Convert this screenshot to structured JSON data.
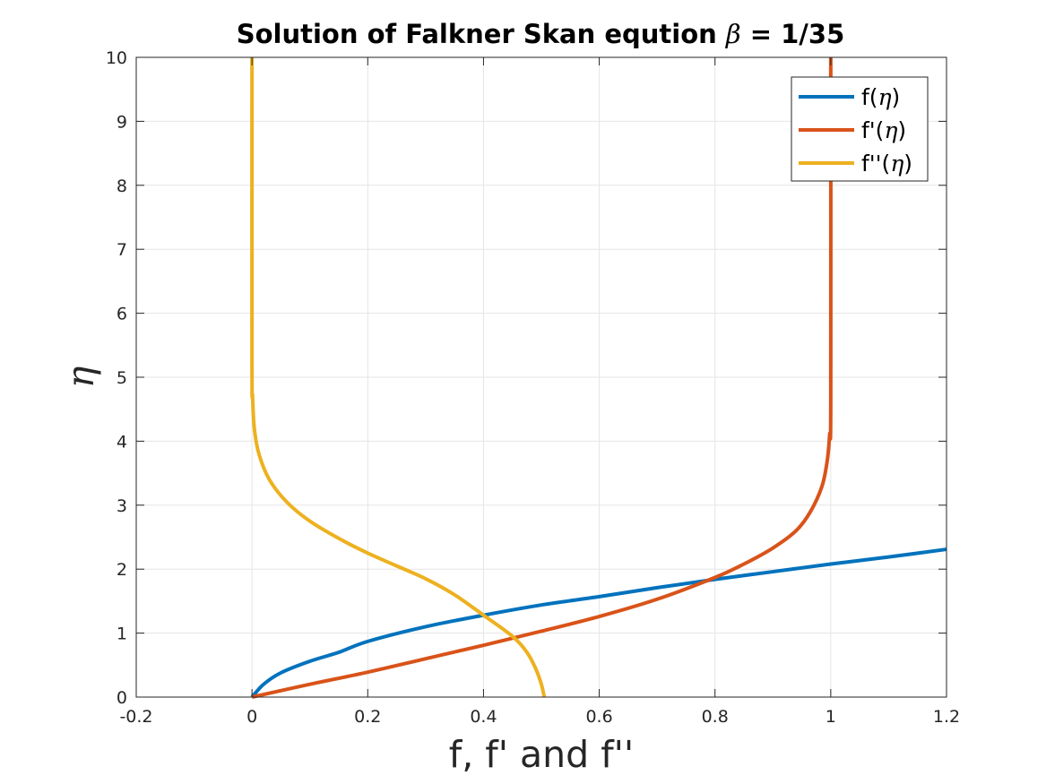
{
  "chart_data": {
    "type": "line",
    "title": {
      "prefix": "Solution of Falkner Skan eqution ",
      "symbol": "β",
      "suffix": " = 1/35"
    },
    "xlabel": "f, f' and f''",
    "ylabel": "η",
    "xlim": [
      -0.2,
      1.2
    ],
    "ylim": [
      0,
      10
    ],
    "xticks": [
      -0.2,
      0,
      0.2,
      0.4,
      0.6,
      0.8,
      1,
      1.2
    ],
    "xtick_labels": [
      "-0.2",
      "0",
      "0.2",
      "0.4",
      "0.6",
      "0.8",
      "1",
      "1.2"
    ],
    "yticks": [
      0,
      1,
      2,
      3,
      4,
      5,
      6,
      7,
      8,
      9,
      10
    ],
    "ytick_labels": [
      "0",
      "1",
      "2",
      "3",
      "4",
      "5",
      "6",
      "7",
      "8",
      "9",
      "10"
    ],
    "grid": true,
    "legend_position": "top-right",
    "series": [
      {
        "name_text": "f(",
        "name_symbol": "η",
        "name_close": ")",
        "color": "#0072BD",
        "points": [
          [
            0,
            0
          ],
          [
            0.02,
            0.2
          ],
          [
            0.05,
            0.38
          ],
          [
            0.1,
            0.56
          ],
          [
            0.15,
            0.7
          ],
          [
            0.2,
            0.87
          ],
          [
            0.3,
            1.1
          ],
          [
            0.4,
            1.28
          ],
          [
            0.5,
            1.44
          ],
          [
            0.6,
            1.57
          ],
          [
            0.7,
            1.71
          ],
          [
            0.8,
            1.84
          ],
          [
            0.9,
            1.96
          ],
          [
            1.0,
            2.08
          ],
          [
            1.1,
            2.19
          ],
          [
            1.2,
            2.31
          ]
        ]
      },
      {
        "name_text": "f'(",
        "name_symbol": "η",
        "name_close": ")",
        "color": "#D95319",
        "points": [
          [
            0,
            0
          ],
          [
            0.1,
            0.2
          ],
          [
            0.2,
            0.39
          ],
          [
            0.3,
            0.6
          ],
          [
            0.4,
            0.81
          ],
          [
            0.5,
            1.03
          ],
          [
            0.6,
            1.26
          ],
          [
            0.7,
            1.53
          ],
          [
            0.8,
            1.87
          ],
          [
            0.85,
            2.08
          ],
          [
            0.9,
            2.33
          ],
          [
            0.94,
            2.6
          ],
          [
            0.965,
            2.9
          ],
          [
            0.985,
            3.3
          ],
          [
            0.994,
            3.7
          ],
          [
            0.998,
            4.1
          ],
          [
            1.0,
            4.6
          ],
          [
            1.0,
            10
          ]
        ]
      },
      {
        "name_text": "f''(",
        "name_symbol": "η",
        "name_close": ")",
        "color": "#EDB120",
        "points": [
          [
            0.505,
            0
          ],
          [
            0.5,
            0.2
          ],
          [
            0.49,
            0.45
          ],
          [
            0.475,
            0.7
          ],
          [
            0.45,
            0.95
          ],
          [
            0.4,
            1.28
          ],
          [
            0.35,
            1.6
          ],
          [
            0.3,
            1.85
          ],
          [
            0.25,
            2.05
          ],
          [
            0.2,
            2.25
          ],
          [
            0.15,
            2.48
          ],
          [
            0.1,
            2.75
          ],
          [
            0.06,
            3.05
          ],
          [
            0.03,
            3.4
          ],
          [
            0.012,
            3.8
          ],
          [
            0.004,
            4.2
          ],
          [
            0.001,
            4.7
          ],
          [
            0,
            5.2
          ],
          [
            0,
            10
          ]
        ]
      }
    ]
  }
}
